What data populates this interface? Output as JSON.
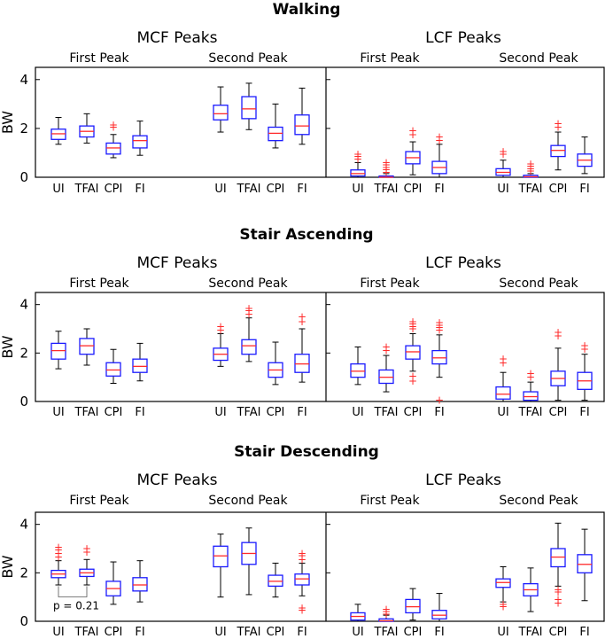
{
  "figure": {
    "panels": [
      {
        "title": "Walking",
        "left_label": "MCF Peaks",
        "right_label": "LCF Peaks"
      },
      {
        "title": "Stair Ascending",
        "left_label": "MCF Peaks",
        "right_label": "LCF Peaks"
      },
      {
        "title": "Stair Descending",
        "left_label": "MCF Peaks",
        "right_label": "LCF Peaks"
      }
    ],
    "peak_labels": [
      "First Peak",
      "Second Peak"
    ],
    "ylabel": "BW",
    "yticks": [
      "0",
      "2",
      "4"
    ],
    "categories": [
      "UI",
      "TFAI",
      "CPI",
      "FI"
    ],
    "annotation": "p = 0.21",
    "colors": {
      "box": "#1a1aff",
      "median": "#ff2a2a",
      "whisker": "#000000",
      "outlier": "#ff2a2a"
    }
  },
  "chart_data": [
    {
      "type": "boxplot",
      "title": "Walking",
      "ylabel": "BW",
      "ylim": [
        0,
        4.5
      ],
      "categories": [
        "UI",
        "TFAI",
        "CPI",
        "FI"
      ],
      "groups": [
        {
          "name": "MCF Peaks - First Peak",
          "boxes": [
            {
              "min": 1.35,
              "q1": 1.55,
              "median": 1.78,
              "q3": 1.97,
              "max": 2.45,
              "outliers": []
            },
            {
              "min": 1.4,
              "q1": 1.65,
              "median": 1.88,
              "q3": 2.1,
              "max": 2.6,
              "outliers": []
            },
            {
              "min": 0.8,
              "q1": 0.95,
              "median": 1.2,
              "q3": 1.4,
              "max": 1.75,
              "outliers": [
                2.05,
                2.15
              ]
            },
            {
              "min": 0.9,
              "q1": 1.2,
              "median": 1.5,
              "q3": 1.7,
              "max": 2.3,
              "outliers": []
            }
          ]
        },
        {
          "name": "MCF Peaks - Second Peak",
          "boxes": [
            {
              "min": 1.85,
              "q1": 2.35,
              "median": 2.6,
              "q3": 2.95,
              "max": 3.7,
              "outliers": []
            },
            {
              "min": 1.95,
              "q1": 2.4,
              "median": 2.8,
              "q3": 3.3,
              "max": 3.85,
              "outliers": []
            },
            {
              "min": 1.2,
              "q1": 1.5,
              "median": 1.8,
              "q3": 2.05,
              "max": 3.0,
              "outliers": []
            },
            {
              "min": 1.35,
              "q1": 1.75,
              "median": 2.1,
              "q3": 2.55,
              "max": 3.65,
              "outliers": []
            }
          ]
        },
        {
          "name": "LCF Peaks - First Peak",
          "boxes": [
            {
              "min": 0,
              "q1": 0.05,
              "median": 0.15,
              "q3": 0.3,
              "max": 0.6,
              "outliers": [
                0.75,
                0.85,
                0.95
              ]
            },
            {
              "min": 0,
              "q1": 0,
              "median": 0,
              "q3": 0.05,
              "max": 0.15,
              "outliers": [
                0.2,
                0.3,
                0.4,
                0.5,
                0.6
              ]
            },
            {
              "min": 0.1,
              "q1": 0.55,
              "median": 0.8,
              "q3": 1.05,
              "max": 1.45,
              "outliers": [
                1.75,
                1.9
              ]
            },
            {
              "min": 0,
              "q1": 0.15,
              "median": 0.4,
              "q3": 0.65,
              "max": 1.35,
              "outliers": [
                1.5,
                1.65
              ]
            }
          ]
        },
        {
          "name": "LCF Peaks - Second Peak",
          "boxes": [
            {
              "min": 0,
              "q1": 0.08,
              "median": 0.2,
              "q3": 0.35,
              "max": 0.7,
              "outliers": [
                0.95,
                1.05
              ]
            },
            {
              "min": 0,
              "q1": 0,
              "median": 0.02,
              "q3": 0.08,
              "max": 0.15,
              "outliers": [
                0.25,
                0.35,
                0.45,
                0.55
              ]
            },
            {
              "min": 0.3,
              "q1": 0.85,
              "median": 1.1,
              "q3": 1.3,
              "max": 1.85,
              "outliers": [
                2.05,
                2.2
              ]
            },
            {
              "min": 0.15,
              "q1": 0.45,
              "median": 0.7,
              "q3": 0.95,
              "max": 1.65,
              "outliers": []
            }
          ]
        }
      ]
    },
    {
      "type": "boxplot",
      "title": "Stair Ascending",
      "ylabel": "BW",
      "ylim": [
        0,
        4.5
      ],
      "categories": [
        "UI",
        "TFAI",
        "CPI",
        "FI"
      ],
      "groups": [
        {
          "name": "MCF Peaks - First Peak",
          "boxes": [
            {
              "min": 1.35,
              "q1": 1.75,
              "median": 2.1,
              "q3": 2.4,
              "max": 2.9,
              "outliers": []
            },
            {
              "min": 1.5,
              "q1": 1.95,
              "median": 2.3,
              "q3": 2.6,
              "max": 3.0,
              "outliers": []
            },
            {
              "min": 0.75,
              "q1": 1.05,
              "median": 1.3,
              "q3": 1.6,
              "max": 2.15,
              "outliers": []
            },
            {
              "min": 0.85,
              "q1": 1.2,
              "median": 1.45,
              "q3": 1.75,
              "max": 2.4,
              "outliers": []
            }
          ]
        },
        {
          "name": "MCF Peaks - Second Peak",
          "boxes": [
            {
              "min": 1.45,
              "q1": 1.7,
              "median": 1.95,
              "q3": 2.2,
              "max": 2.8,
              "outliers": [
                2.95,
                3.1
              ]
            },
            {
              "min": 1.65,
              "q1": 1.95,
              "median": 2.3,
              "q3": 2.55,
              "max": 3.45,
              "outliers": [
                3.6,
                3.75,
                3.85
              ]
            },
            {
              "min": 0.7,
              "q1": 1.0,
              "median": 1.3,
              "q3": 1.6,
              "max": 2.45,
              "outliers": []
            },
            {
              "min": 0.8,
              "q1": 1.2,
              "median": 1.55,
              "q3": 1.95,
              "max": 3.0,
              "outliers": [
                3.3,
                3.5
              ]
            }
          ]
        },
        {
          "name": "LCF Peaks - First Peak",
          "boxes": [
            {
              "min": 0.7,
              "q1": 1.0,
              "median": 1.25,
              "q3": 1.55,
              "max": 2.25,
              "outliers": []
            },
            {
              "min": 0.4,
              "q1": 0.75,
              "median": 1.0,
              "q3": 1.3,
              "max": 1.9,
              "outliers": [
                2.1,
                2.25
              ]
            },
            {
              "min": 1.25,
              "q1": 1.75,
              "median": 2.05,
              "q3": 2.3,
              "max": 2.8,
              "outliers": [
                0.85,
                1.05,
                3.0,
                3.1,
                3.2,
                3.3
              ]
            },
            {
              "min": 1.0,
              "q1": 1.55,
              "median": 1.8,
              "q3": 2.1,
              "max": 2.75,
              "outliers": [
                0.05,
                2.95,
                3.05,
                3.15,
                3.25
              ]
            }
          ]
        },
        {
          "name": "LCF Peaks - Second Peak",
          "boxes": [
            {
              "min": 0,
              "q1": 0.1,
              "median": 0.3,
              "q3": 0.6,
              "max": 1.2,
              "outliers": [
                1.6,
                1.75
              ]
            },
            {
              "min": 0,
              "q1": 0.05,
              "median": 0.2,
              "q3": 0.4,
              "max": 0.8,
              "outliers": [
                1.0,
                1.15
              ]
            },
            {
              "min": 0.05,
              "q1": 0.65,
              "median": 0.95,
              "q3": 1.25,
              "max": 2.2,
              "outliers": [
                2.7,
                2.85
              ]
            },
            {
              "min": 0.05,
              "q1": 0.5,
              "median": 0.85,
              "q3": 1.2,
              "max": 1.95,
              "outliers": [
                2.15,
                2.3
              ]
            }
          ]
        }
      ]
    },
    {
      "type": "boxplot",
      "title": "Stair Descending",
      "ylabel": "BW",
      "ylim": [
        0,
        4.5
      ],
      "categories": [
        "UI",
        "TFAI",
        "CPI",
        "FI"
      ],
      "annotations": [
        {
          "text": "p = 0.21",
          "between": [
            "UI",
            "TFAI"
          ],
          "group": "MCF Peaks - First Peak"
        }
      ],
      "groups": [
        {
          "name": "MCF Peaks - First Peak",
          "boxes": [
            {
              "min": 1.5,
              "q1": 1.8,
              "median": 1.95,
              "q3": 2.1,
              "max": 2.5,
              "outliers": [
                2.65,
                2.8,
                2.95,
                3.05
              ]
            },
            {
              "min": 1.5,
              "q1": 1.85,
              "median": 2.0,
              "q3": 2.15,
              "max": 2.55,
              "outliers": [
                2.85,
                3.0
              ]
            },
            {
              "min": 0.7,
              "q1": 1.05,
              "median": 1.35,
              "q3": 1.65,
              "max": 2.45,
              "outliers": []
            },
            {
              "min": 0.8,
              "q1": 1.25,
              "median": 1.5,
              "q3": 1.8,
              "max": 2.5,
              "outliers": []
            }
          ]
        },
        {
          "name": "MCF Peaks - Second Peak",
          "boxes": [
            {
              "min": 1.0,
              "q1": 2.25,
              "median": 2.7,
              "q3": 3.1,
              "max": 3.6,
              "outliers": []
            },
            {
              "min": 1.1,
              "q1": 2.35,
              "median": 2.8,
              "q3": 3.25,
              "max": 3.85,
              "outliers": []
            },
            {
              "min": 1.0,
              "q1": 1.45,
              "median": 1.65,
              "q3": 1.9,
              "max": 2.4,
              "outliers": []
            },
            {
              "min": 1.05,
              "q1": 1.5,
              "median": 1.75,
              "q3": 1.95,
              "max": 2.4,
              "outliers": [
                0.45,
                0.55,
                2.55,
                2.7,
                2.8
              ]
            }
          ]
        },
        {
          "name": "LCF Peaks - First Peak",
          "boxes": [
            {
              "min": 0,
              "q1": 0.05,
              "median": 0.2,
              "q3": 0.35,
              "max": 0.7,
              "outliers": []
            },
            {
              "min": 0,
              "q1": 0,
              "median": 0.02,
              "q3": 0.1,
              "max": 0.25,
              "outliers": [
                0.3,
                0.4,
                0.5
              ]
            },
            {
              "min": 0.05,
              "q1": 0.35,
              "median": 0.6,
              "q3": 0.9,
              "max": 1.35,
              "outliers": []
            },
            {
              "min": 0,
              "q1": 0.1,
              "median": 0.25,
              "q3": 0.45,
              "max": 1.15,
              "outliers": []
            }
          ]
        },
        {
          "name": "LCF Peaks - Second Peak",
          "boxes": [
            {
              "min": 0.8,
              "q1": 1.4,
              "median": 1.6,
              "q3": 1.75,
              "max": 2.25,
              "outliers": [
                0.6,
                0.7
              ]
            },
            {
              "min": 0.4,
              "q1": 1.05,
              "median": 1.3,
              "q3": 1.55,
              "max": 2.2,
              "outliers": []
            },
            {
              "min": 1.45,
              "q1": 2.25,
              "median": 2.65,
              "q3": 3.0,
              "max": 4.05,
              "outliers": [
                0.75,
                0.9,
                1.2,
                1.3
              ]
            },
            {
              "min": 0.85,
              "q1": 2.0,
              "median": 2.35,
              "q3": 2.75,
              "max": 3.8,
              "outliers": []
            }
          ]
        }
      ]
    }
  ]
}
